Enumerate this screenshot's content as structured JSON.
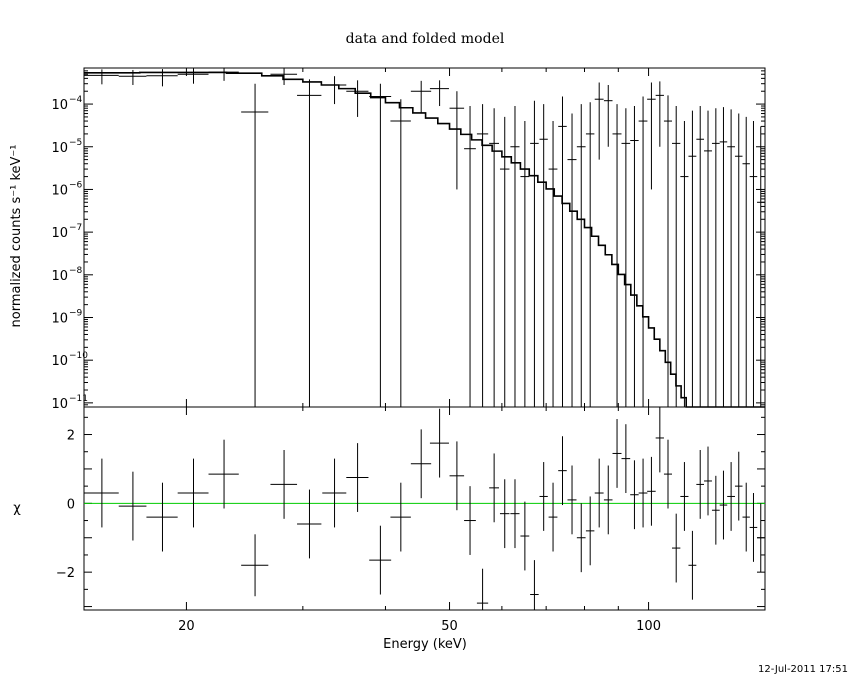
{
  "chart_data": [
    {
      "type": "line",
      "panel": "upper",
      "title": "data and folded model",
      "ylabel": "normalized counts s⁻¹ keV⁻¹",
      "y_scale": "log",
      "ylim": [
        8e-12,
        0.0007
      ],
      "y_tick_labels": [
        {
          "value": 0.0001,
          "mantissa": "10",
          "exponent": "−4"
        },
        {
          "value": 1e-05,
          "mantissa": "10",
          "exponent": "−5"
        },
        {
          "value": 1e-06,
          "mantissa": "10",
          "exponent": "−6"
        },
        {
          "value": 1e-07,
          "mantissa": "10",
          "exponent": "−7"
        },
        {
          "value": 1e-08,
          "mantissa": "10",
          "exponent": "−8"
        },
        {
          "value": 1e-09,
          "mantissa": "10",
          "exponent": "−9"
        },
        {
          "value": 1e-10,
          "mantissa": "10",
          "exponent": "−10"
        },
        {
          "value": 1e-11,
          "mantissa": "10",
          "exponent": "−11"
        }
      ],
      "x_scale": "log",
      "xlim": [
        14,
        150
      ],
      "series": [
        {
          "role": "data",
          "style": "crosses",
          "color": "#000000",
          "points": [
            {
              "x": 14.9,
              "xerr": 0.9,
              "y": 0.00047,
              "ylo": 0.00029,
              "yhi": 0.00065
            },
            {
              "x": 16.6,
              "xerr": 0.8,
              "y": 0.00045,
              "ylo": 0.00028,
              "yhi": 0.00063
            },
            {
              "x": 18.4,
              "xerr": 1.0,
              "y": 0.00046,
              "ylo": 0.00026,
              "yhi": 0.00066
            },
            {
              "x": 20.5,
              "xerr": 1.1,
              "y": 0.0005,
              "ylo": 0.0003,
              "yhi": 0.00068
            },
            {
              "x": 22.8,
              "xerr": 1.2,
              "y": 0.00056,
              "ylo": 0.00035,
              "yhi": 0.0007
            },
            {
              "x": 25.4,
              "xerr": 1.2,
              "y": 6.5e-05,
              "ylo": 8e-12,
              "yhi": 0.0003
            },
            {
              "x": 28.1,
              "xerr": 1.3,
              "y": 0.0005,
              "ylo": 0.00028,
              "yhi": 0.00068
            },
            {
              "x": 30.7,
              "xerr": 1.3,
              "y": 0.00016,
              "ylo": 8e-12,
              "yhi": 0.00038
            },
            {
              "x": 33.5,
              "xerr": 1.4,
              "y": 0.00028,
              "ylo": 0.0001,
              "yhi": 0.00045
            },
            {
              "x": 36.3,
              "xerr": 1.4,
              "y": 0.0002,
              "ylo": 5e-05,
              "yhi": 0.00036
            },
            {
              "x": 39.3,
              "xerr": 1.5,
              "y": 0.00015,
              "ylo": 8e-12,
              "yhi": 0.0003
            },
            {
              "x": 42.2,
              "xerr": 1.5,
              "y": 4e-05,
              "ylo": 8e-12,
              "yhi": 0.00013
            },
            {
              "x": 45.3,
              "xerr": 1.6,
              "y": 0.0002,
              "ylo": 6e-05,
              "yhi": 0.00035
            },
            {
              "x": 48.3,
              "xerr": 1.6,
              "y": 0.00023,
              "ylo": 9e-05,
              "yhi": 0.00036
            },
            {
              "x": 51.3,
              "xerr": 1.3,
              "y": 8e-05,
              "ylo": 1e-06,
              "yhi": 0.0002
            },
            {
              "x": 53.7,
              "xerr": 1.1,
              "y": 9e-06,
              "ylo": 8e-12,
              "yhi": 9e-05
            },
            {
              "x": 56.1,
              "xerr": 1.1,
              "y": 2e-05,
              "ylo": 8e-12,
              "yhi": 0.0001
            },
            {
              "x": 58.4,
              "xerr": 1.0,
              "y": 1.2e-05,
              "ylo": 8e-12,
              "yhi": 8e-05
            },
            {
              "x": 60.6,
              "xerr": 1.0,
              "y": 3e-06,
              "ylo": 8e-12,
              "yhi": 5e-05
            },
            {
              "x": 62.8,
              "xerr": 1.0,
              "y": 1e-05,
              "ylo": 8e-12,
              "yhi": 9e-05
            },
            {
              "x": 65.0,
              "xerr": 1.0,
              "y": 2e-06,
              "ylo": 8e-12,
              "yhi": 4e-05
            },
            {
              "x": 67.2,
              "xerr": 1.0,
              "y": 1.2e-05,
              "ylo": 8e-12,
              "yhi": 0.00012
            },
            {
              "x": 69.4,
              "xerr": 1.0,
              "y": 1.5e-05,
              "ylo": 8e-12,
              "yhi": 0.0001
            },
            {
              "x": 71.7,
              "xerr": 1.1,
              "y": 3e-06,
              "ylo": 8e-12,
              "yhi": 4e-05
            },
            {
              "x": 74.1,
              "xerr": 1.1,
              "y": 3e-05,
              "ylo": 8e-12,
              "yhi": 0.00015
            },
            {
              "x": 76.6,
              "xerr": 1.2,
              "y": 5e-06,
              "ylo": 8e-12,
              "yhi": 6e-05
            },
            {
              "x": 79.1,
              "xerr": 1.2,
              "y": 1e-05,
              "ylo": 8e-12,
              "yhi": 0.0001
            },
            {
              "x": 81.6,
              "xerr": 1.2,
              "y": 2e-05,
              "ylo": 8e-12,
              "yhi": 0.00011
            },
            {
              "x": 84.2,
              "xerr": 1.3,
              "y": 0.00013,
              "ylo": 5e-06,
              "yhi": 0.00032
            },
            {
              "x": 86.9,
              "xerr": 1.3,
              "y": 0.00012,
              "ylo": 1e-05,
              "yhi": 0.00028
            },
            {
              "x": 89.6,
              "xerr": 1.4,
              "y": 2e-05,
              "ylo": 8e-12,
              "yhi": 0.0001
            },
            {
              "x": 92.4,
              "xerr": 1.4,
              "y": 1.2e-05,
              "ylo": 8e-12,
              "yhi": 8e-05
            },
            {
              "x": 95.2,
              "xerr": 1.4,
              "y": 1.4e-05,
              "ylo": 8e-12,
              "yhi": 9e-05
            },
            {
              "x": 98.1,
              "xerr": 1.5,
              "y": 4e-05,
              "ylo": 8e-12,
              "yhi": 0.00015
            },
            {
              "x": 101.0,
              "xerr": 1.5,
              "y": 0.00013,
              "ylo": 1e-06,
              "yhi": 0.00032
            },
            {
              "x": 104.0,
              "xerr": 1.5,
              "y": 0.00016,
              "ylo": 1e-05,
              "yhi": 0.00034
            },
            {
              "x": 107.0,
              "xerr": 1.5,
              "y": 4e-05,
              "ylo": 8e-12,
              "yhi": 0.00016
            },
            {
              "x": 110.1,
              "xerr": 1.6,
              "y": 1.2e-05,
              "ylo": 8e-12,
              "yhi": 9e-05
            },
            {
              "x": 113.3,
              "xerr": 1.6,
              "y": 2e-06,
              "ylo": 8e-12,
              "yhi": 4e-05
            },
            {
              "x": 116.5,
              "xerr": 1.6,
              "y": 6e-06,
              "ylo": 8e-12,
              "yhi": 7e-05
            },
            {
              "x": 119.7,
              "xerr": 1.6,
              "y": 1.5e-05,
              "ylo": 8e-12,
              "yhi": 9e-05
            },
            {
              "x": 123.0,
              "xerr": 1.7,
              "y": 8e-06,
              "ylo": 8e-12,
              "yhi": 7e-05
            },
            {
              "x": 126.4,
              "xerr": 1.7,
              "y": 1.2e-05,
              "ylo": 8e-12,
              "yhi": 8e-05
            },
            {
              "x": 129.8,
              "xerr": 1.7,
              "y": 1.3e-05,
              "ylo": 8e-12,
              "yhi": 8.5e-05
            },
            {
              "x": 133.3,
              "xerr": 1.8,
              "y": 1e-05,
              "ylo": 8e-12,
              "yhi": 7.5e-05
            },
            {
              "x": 136.9,
              "xerr": 1.8,
              "y": 6e-06,
              "ylo": 8e-12,
              "yhi": 6e-05
            },
            {
              "x": 140.5,
              "xerr": 1.8,
              "y": 4e-06,
              "ylo": 8e-12,
              "yhi": 5e-05
            },
            {
              "x": 144.1,
              "xerr": 1.9,
              "y": 2e-06,
              "ylo": 8e-12,
              "yhi": 4e-05
            },
            {
              "x": 147.8,
              "xerr": 1.9,
              "y": 5e-07,
              "ylo": 8e-12,
              "yhi": 3e-05
            }
          ]
        },
        {
          "role": "model",
          "style": "histogram-step",
          "color": "#000000",
          "edges": [
            14,
            17,
            20,
            23,
            26,
            28,
            30,
            32,
            34,
            36,
            38,
            40,
            42,
            44,
            46,
            48,
            50,
            52,
            54,
            56,
            58,
            60,
            62,
            64,
            66,
            68,
            70,
            72,
            74,
            76,
            78,
            80,
            82,
            84,
            86,
            88,
            90,
            92,
            94,
            96,
            98,
            100,
            102,
            104,
            106,
            108,
            110,
            112,
            114,
            116,
            118,
            120,
            122,
            124,
            126,
            128,
            130,
            132,
            134,
            136,
            138,
            140,
            142,
            144,
            146,
            148,
            150
          ],
          "values": [
            0.00054,
            0.00055,
            0.00055,
            0.00053,
            0.00046,
            0.00038,
            0.00033,
            0.00028,
            0.00023,
            0.00018,
            0.000142,
            0.000108,
            8.2e-05,
            6.2e-05,
            4.7e-05,
            3.5e-05,
            2.6e-05,
            1.95e-05,
            1.45e-05,
            1.08e-05,
            7.9e-06,
            5.8e-06,
            4.2e-06,
            3e-06,
            2.1e-06,
            1.48e-06,
            1.03e-06,
            7e-07,
            4.7e-07,
            3.1e-07,
            2e-07,
            1.28e-07,
            8e-08,
            4.9e-08,
            2.95e-08,
            1.75e-08,
            1.02e-08,
            5.9e-09,
            3.35e-09,
            1.88e-09,
            1.04e-09,
            5.7e-10,
            3.1e-10,
            1.67e-10,
            8.9e-11,
            4.7e-11,
            2.5e-11,
            1.32e-11,
            8e-12,
            8e-12,
            8e-12,
            8e-12,
            8e-12,
            8e-12,
            8e-12,
            8e-12,
            8e-12,
            8e-12,
            8e-12,
            8e-12,
            8e-12,
            8e-12,
            8e-12,
            8e-12,
            8e-12,
            8e-12
          ]
        }
      ]
    },
    {
      "type": "scatter",
      "panel": "lower",
      "ylabel": "χ",
      "xlabel": "Energy (keV)",
      "x_scale": "log",
      "xlim": [
        14,
        150
      ],
      "ylim": [
        -3.1,
        2.8
      ],
      "x_tick_labels": [
        {
          "value": 20,
          "label": "20"
        },
        {
          "value": 50,
          "label": "50"
        },
        {
          "value": 100,
          "label": "100"
        }
      ],
      "y_tick_labels": [
        {
          "value": 2,
          "label": "2"
        },
        {
          "value": 0,
          "label": "0"
        },
        {
          "value": -2,
          "label": "−2"
        }
      ],
      "zero_line_color": "#00cc00",
      "series": [
        {
          "role": "residuals",
          "style": "crosses",
          "color": "#000000",
          "points": [
            {
              "x": 14.9,
              "xerr": 0.9,
              "y": 0.3,
              "yerr": 1.0
            },
            {
              "x": 16.6,
              "xerr": 0.8,
              "y": -0.08,
              "yerr": 1.0
            },
            {
              "x": 18.4,
              "xerr": 1.0,
              "y": -0.4,
              "yerr": 1.0
            },
            {
              "x": 20.5,
              "xerr": 1.1,
              "y": 0.3,
              "yerr": 1.0
            },
            {
              "x": 22.8,
              "xerr": 1.2,
              "y": 0.85,
              "yerr": 1.0
            },
            {
              "x": 25.4,
              "xerr": 1.2,
              "y": -1.8,
              "yerr": 0.9
            },
            {
              "x": 28.1,
              "xerr": 1.3,
              "y": 0.55,
              "yerr": 1.0
            },
            {
              "x": 30.7,
              "xerr": 1.3,
              "y": -0.6,
              "yerr": 1.0
            },
            {
              "x": 33.5,
              "xerr": 1.4,
              "y": 0.3,
              "yerr": 1.0
            },
            {
              "x": 36.3,
              "xerr": 1.4,
              "y": 0.75,
              "yerr": 1.0
            },
            {
              "x": 39.3,
              "xerr": 1.5,
              "y": -1.65,
              "yerr": 1.0
            },
            {
              "x": 42.2,
              "xerr": 1.5,
              "y": -0.4,
              "yerr": 1.0
            },
            {
              "x": 45.3,
              "xerr": 1.6,
              "y": 1.15,
              "yerr": 1.0
            },
            {
              "x": 48.3,
              "xerr": 1.6,
              "y": 1.75,
              "yerr": 1.0
            },
            {
              "x": 51.3,
              "xerr": 1.3,
              "y": 0.8,
              "yerr": 1.0
            },
            {
              "x": 53.7,
              "xerr": 1.1,
              "y": -0.5,
              "yerr": 1.0
            },
            {
              "x": 56.1,
              "xerr": 1.1,
              "y": -2.9,
              "yerr": 1.0
            },
            {
              "x": 58.4,
              "xerr": 1.0,
              "y": 0.45,
              "yerr": 1.0
            },
            {
              "x": 60.6,
              "xerr": 1.0,
              "y": -0.3,
              "yerr": 1.0
            },
            {
              "x": 62.8,
              "xerr": 1.0,
              "y": -0.3,
              "yerr": 1.0
            },
            {
              "x": 65.0,
              "xerr": 1.0,
              "y": -0.95,
              "yerr": 1.0
            },
            {
              "x": 67.2,
              "xerr": 1.0,
              "y": -2.65,
              "yerr": 1.0
            },
            {
              "x": 69.4,
              "xerr": 1.0,
              "y": 0.2,
              "yerr": 1.0
            },
            {
              "x": 71.7,
              "xerr": 1.1,
              "y": -0.4,
              "yerr": 1.0
            },
            {
              "x": 74.1,
              "xerr": 1.1,
              "y": 0.95,
              "yerr": 1.0
            },
            {
              "x": 76.6,
              "xerr": 1.2,
              "y": 0.1,
              "yerr": 1.0
            },
            {
              "x": 79.1,
              "xerr": 1.2,
              "y": -1.0,
              "yerr": 1.0
            },
            {
              "x": 81.6,
              "xerr": 1.2,
              "y": -0.8,
              "yerr": 1.0
            },
            {
              "x": 84.2,
              "xerr": 1.3,
              "y": 0.3,
              "yerr": 1.0
            },
            {
              "x": 86.9,
              "xerr": 1.3,
              "y": 0.1,
              "yerr": 1.0
            },
            {
              "x": 89.6,
              "xerr": 1.4,
              "y": 1.45,
              "yerr": 1.0
            },
            {
              "x": 92.4,
              "xerr": 1.4,
              "y": 1.3,
              "yerr": 1.0
            },
            {
              "x": 95.2,
              "xerr": 1.4,
              "y": 0.25,
              "yerr": 1.0
            },
            {
              "x": 98.1,
              "xerr": 1.5,
              "y": 0.3,
              "yerr": 1.0
            },
            {
              "x": 101.0,
              "xerr": 1.5,
              "y": 0.35,
              "yerr": 1.0
            },
            {
              "x": 104.0,
              "xerr": 1.5,
              "y": 1.9,
              "yerr": 1.0
            },
            {
              "x": 107.0,
              "xerr": 1.5,
              "y": 0.85,
              "yerr": 1.0
            },
            {
              "x": 110.1,
              "xerr": 1.6,
              "y": -1.3,
              "yerr": 1.0
            },
            {
              "x": 113.3,
              "xerr": 1.6,
              "y": 0.2,
              "yerr": 1.0
            },
            {
              "x": 116.5,
              "xerr": 1.6,
              "y": -1.8,
              "yerr": 1.0
            },
            {
              "x": 119.7,
              "xerr": 1.6,
              "y": 0.55,
              "yerr": 1.0
            },
            {
              "x": 123.0,
              "xerr": 1.7,
              "y": 0.65,
              "yerr": 1.0
            },
            {
              "x": 126.4,
              "xerr": 1.7,
              "y": -0.2,
              "yerr": 1.0
            },
            {
              "x": 129.8,
              "xerr": 1.7,
              "y": -0.05,
              "yerr": 1.0
            },
            {
              "x": 133.3,
              "xerr": 1.8,
              "y": 0.2,
              "yerr": 1.0
            },
            {
              "x": 136.9,
              "xerr": 1.8,
              "y": 0.5,
              "yerr": 1.0
            },
            {
              "x": 140.5,
              "xerr": 1.8,
              "y": -0.4,
              "yerr": 1.0
            },
            {
              "x": 144.1,
              "xerr": 1.9,
              "y": -0.7,
              "yerr": 1.0
            },
            {
              "x": 147.8,
              "xerr": 1.9,
              "y": -1.0,
              "yerr": 1.0
            }
          ]
        }
      ]
    }
  ],
  "footer": {
    "timestamp": "12-Jul-2011 17:51"
  }
}
